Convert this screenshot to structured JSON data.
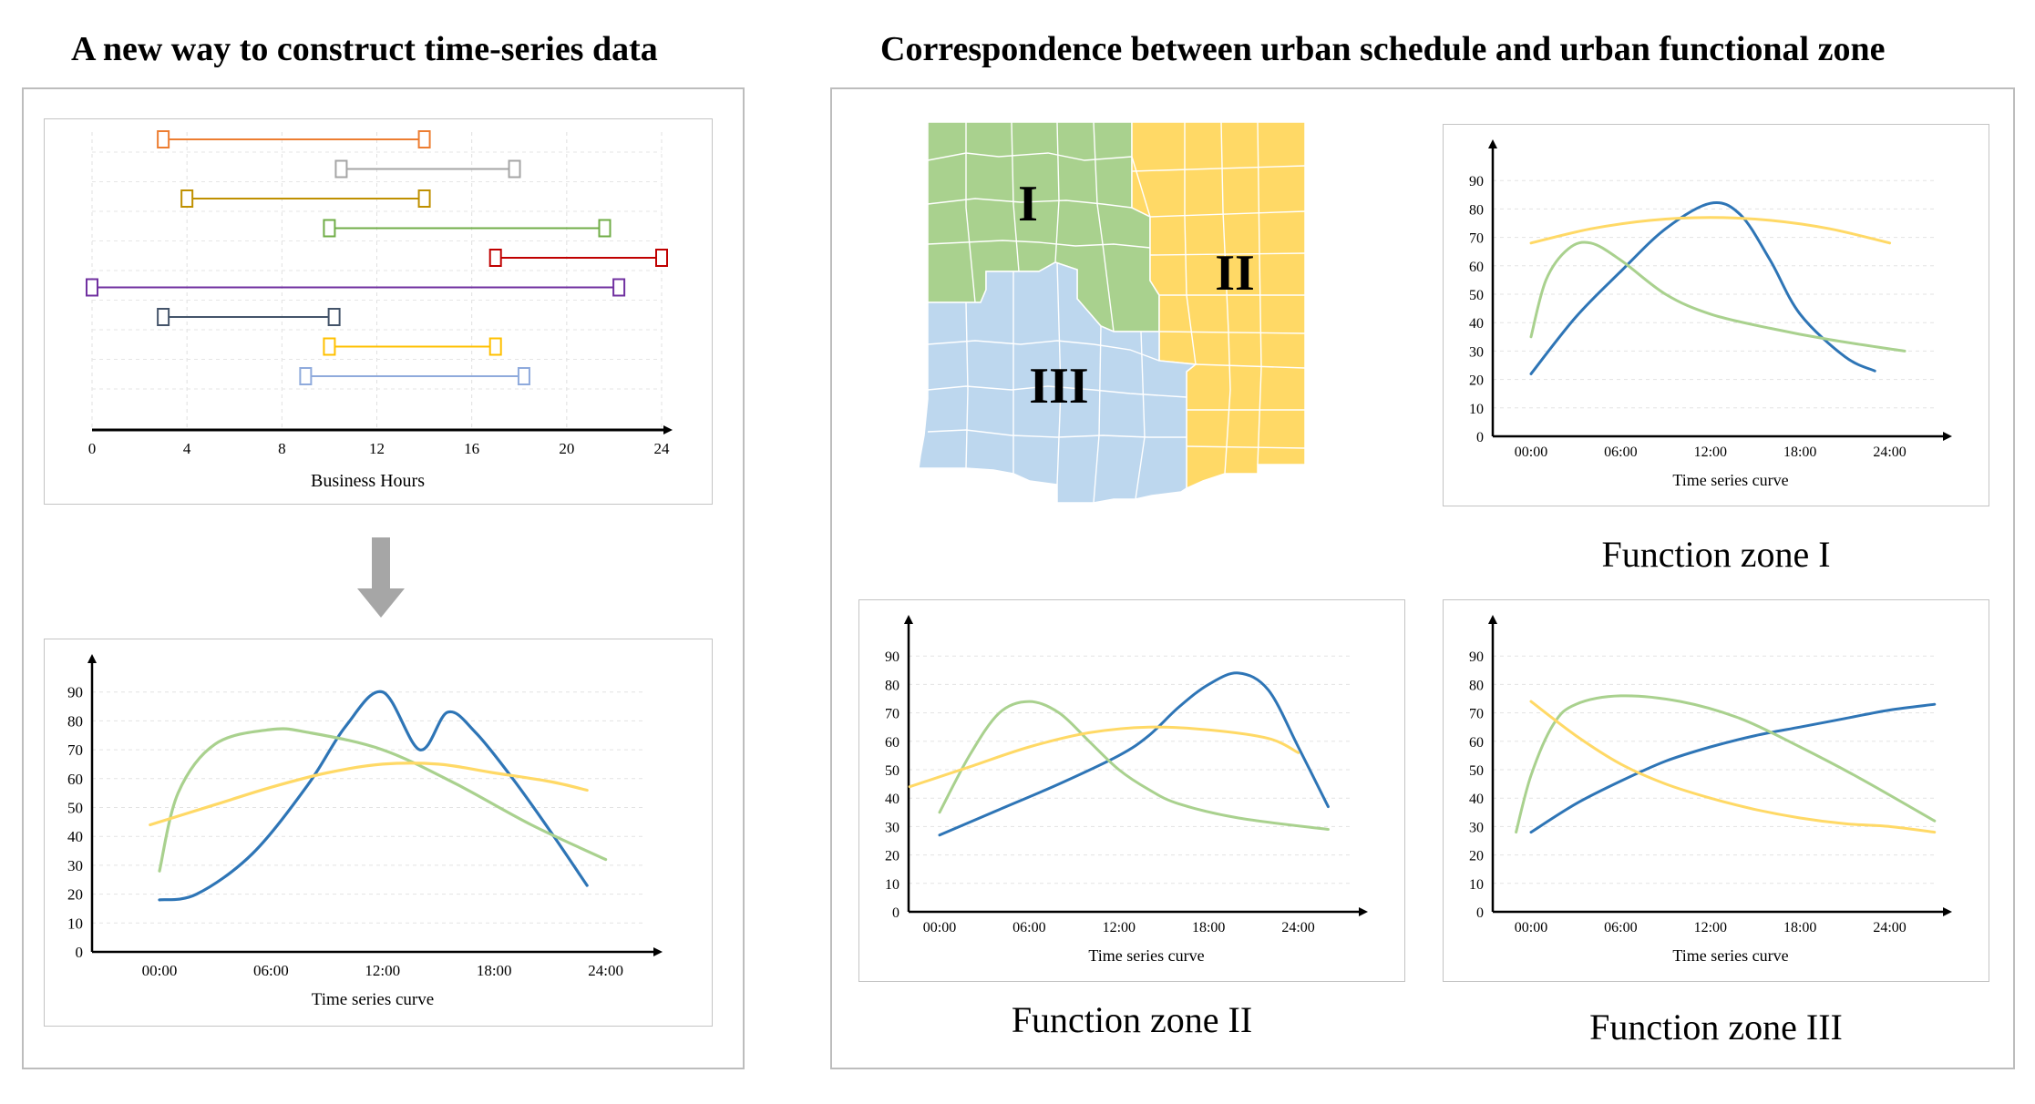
{
  "left": {
    "title": "A new way to construct time-series data",
    "hours_chart": {
      "xlabel": "Business Hours",
      "x_ticks": [
        "0",
        "4",
        "8",
        "12",
        "16",
        "20",
        "24"
      ]
    },
    "combined_chart": {
      "xlabel": "Time series curve",
      "x_ticks": [
        "00:00",
        "06:00",
        "12:00",
        "18:00",
        "24:00"
      ],
      "y_ticks": [
        "0",
        "10",
        "20",
        "30",
        "40",
        "50",
        "60",
        "70",
        "80",
        "90"
      ]
    }
  },
  "right": {
    "title": "Correspondence between urban schedule and urban functional zone",
    "map": {
      "zone_labels": [
        "I",
        "II",
        "III"
      ],
      "colors": {
        "zone_I": "#a9d18e",
        "zone_II": "#ffd966",
        "zone_III": "#bdd7ee"
      }
    },
    "zone_charts": [
      {
        "caption": "Function zone I",
        "xlabel": "Time series curve"
      },
      {
        "caption": "Function zone II",
        "xlabel": "Time series curve"
      },
      {
        "caption": "Function zone III",
        "xlabel": "Time series curve"
      }
    ],
    "x_ticks": [
      "00:00",
      "06:00",
      "12:00",
      "18:00",
      "24:00"
    ],
    "y_ticks": [
      "0",
      "10",
      "20",
      "30",
      "40",
      "50",
      "60",
      "70",
      "80",
      "90"
    ]
  },
  "chart_data": [
    {
      "type": "gantt",
      "xlabel": "Business Hours",
      "xlim": [
        0,
        24
      ],
      "x_ticks": [
        0,
        4,
        8,
        12,
        16,
        20,
        24
      ],
      "grid": true,
      "intervals": [
        {
          "start": 3,
          "end": 14,
          "color": "#ed7d31"
        },
        {
          "start": 10.5,
          "end": 17.8,
          "color": "#a5a5a5"
        },
        {
          "start": 4,
          "end": 14,
          "color": "#bf9000"
        },
        {
          "start": 10,
          "end": 21.6,
          "color": "#70ad47"
        },
        {
          "start": 17,
          "end": 24,
          "color": "#c00000"
        },
        {
          "start": 0,
          "end": 22.2,
          "color": "#7030a0"
        },
        {
          "start": 3,
          "end": 10.2,
          "color": "#44546a"
        },
        {
          "start": 10,
          "end": 17,
          "color": "#ffc000"
        },
        {
          "start": 9,
          "end": 18.2,
          "color": "#8faadc"
        }
      ]
    },
    {
      "type": "line",
      "xlabel": "Time series curve",
      "ylim": [
        0,
        100
      ],
      "x_ticks": [
        "00:00",
        "06:00",
        "12:00",
        "18:00",
        "24:00"
      ],
      "series": [
        {
          "color": "#2e75b6",
          "x": [
            0,
            2,
            5,
            8,
            10,
            12,
            14,
            15.5,
            17,
            19,
            21,
            23
          ],
          "y": [
            18,
            20,
            34,
            58,
            78,
            90,
            70,
            83,
            76,
            60,
            42,
            23
          ]
        },
        {
          "color": "#a9d18e",
          "x": [
            0,
            1,
            3,
            6,
            8,
            12,
            16,
            20,
            24
          ],
          "y": [
            28,
            55,
            72,
            77,
            76,
            70,
            58,
            44,
            32
          ]
        },
        {
          "color": "#ffd966",
          "x": [
            -0.5,
            3,
            6,
            9,
            12,
            15,
            18,
            21,
            23
          ],
          "y": [
            44,
            51,
            57,
            62,
            65,
            65,
            62,
            59,
            56
          ]
        }
      ]
    },
    {
      "type": "line",
      "title": "Function zone I",
      "xlabel": "Time series curve",
      "ylim": [
        0,
        100
      ],
      "x_ticks": [
        "00:00",
        "06:00",
        "12:00",
        "18:00",
        "24:00"
      ],
      "series": [
        {
          "color": "#2e75b6",
          "x": [
            0,
            3,
            6,
            9,
            12,
            14,
            16,
            18,
            21,
            23
          ],
          "y": [
            22,
            42,
            58,
            73,
            82,
            78,
            62,
            43,
            28,
            23
          ]
        },
        {
          "color": "#a9d18e",
          "x": [
            0,
            1,
            2.5,
            4,
            6,
            9,
            12,
            16,
            20,
            25
          ],
          "y": [
            35,
            55,
            66,
            68,
            62,
            50,
            43,
            38,
            34,
            30
          ]
        },
        {
          "color": "#ffd966",
          "x": [
            0,
            4,
            8,
            12,
            16,
            20,
            24
          ],
          "y": [
            68,
            73,
            76,
            77,
            76,
            73,
            68
          ]
        }
      ]
    },
    {
      "type": "line",
      "title": "Function zone II",
      "xlabel": "Time series curve",
      "ylim": [
        0,
        100
      ],
      "x_ticks": [
        "00:00",
        "06:00",
        "12:00",
        "18:00",
        "24:00"
      ],
      "series": [
        {
          "color": "#2e75b6",
          "x": [
            0,
            4,
            8,
            12,
            14,
            16,
            18,
            20,
            22,
            24,
            26
          ],
          "y": [
            27,
            36,
            45,
            55,
            62,
            72,
            80,
            84,
            78,
            58,
            37
          ]
        },
        {
          "color": "#a9d18e",
          "x": [
            0,
            2,
            4,
            6,
            8,
            10,
            12,
            14,
            16,
            20,
            26
          ],
          "y": [
            35,
            55,
            70,
            74,
            70,
            60,
            50,
            43,
            38,
            33,
            29
          ]
        },
        {
          "color": "#ffd966",
          "x": [
            -2,
            2,
            6,
            10,
            14,
            18,
            22,
            24
          ],
          "y": [
            44,
            51,
            58,
            63,
            65,
            64,
            61,
            56
          ]
        }
      ]
    },
    {
      "type": "line",
      "title": "Function zone III",
      "xlabel": "Time series curve",
      "ylim": [
        0,
        100
      ],
      "x_ticks": [
        "00:00",
        "06:00",
        "12:00",
        "18:00",
        "24:00"
      ],
      "series": [
        {
          "color": "#2e75b6",
          "x": [
            0,
            3,
            6,
            9,
            12,
            15,
            18,
            21,
            24,
            27
          ],
          "y": [
            28,
            38,
            46,
            53,
            58,
            62,
            65,
            68,
            71,
            73
          ]
        },
        {
          "color": "#a9d18e",
          "x": [
            -1,
            0,
            1.5,
            3,
            6,
            10,
            14,
            18,
            22,
            27
          ],
          "y": [
            28,
            48,
            66,
            73,
            76,
            74,
            68,
            58,
            47,
            32
          ]
        },
        {
          "color": "#ffd966",
          "x": [
            0,
            3,
            6,
            9,
            12,
            15,
            18,
            21,
            24,
            27
          ],
          "y": [
            74,
            62,
            52,
            45,
            40,
            36,
            33,
            31,
            30,
            28
          ]
        }
      ]
    }
  ]
}
